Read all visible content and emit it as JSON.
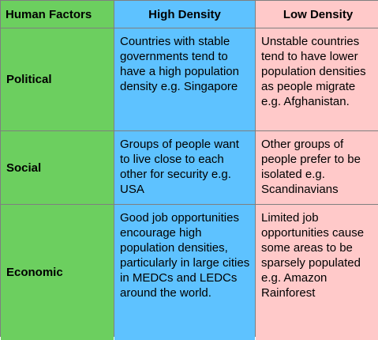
{
  "headers": {
    "human": "Human Factors",
    "high": "High Density",
    "low": "Low Density"
  },
  "rows": [
    {
      "label": "Political",
      "high": "Countries with stable governments tend to have a high population density e.g. Singapore",
      "low": "Unstable countries tend to have lower population densities as people migrate e.g. Afghanistan."
    },
    {
      "label": "Social",
      "high": "Groups of people want to live close to each other for security e.g. USA",
      "low": "Other groups of people prefer to be isolated e.g. Scandinavians"
    },
    {
      "label": "Economic",
      "high": "Good job opportunities encourage high population densities, particularly in large cities in MEDCs and LEDCs around the world.",
      "low": "Limited job opportunities cause some areas to be sparsely populated e.g. Amazon Rainforest"
    }
  ],
  "colors": {
    "human_factors": "#6ccf5f",
    "high_density": "#5ec2ff",
    "low_density": "#ffc9c9",
    "border": "#7f7f7f"
  }
}
